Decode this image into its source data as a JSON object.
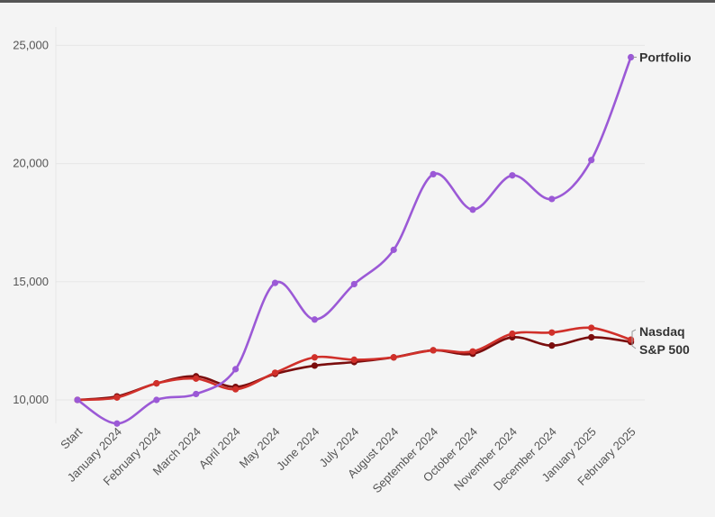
{
  "chart_data": {
    "type": "line",
    "title": "",
    "xlabel": "",
    "ylabel": "",
    "ylim": [
      9000,
      25500
    ],
    "y_ticks": [
      "10,000",
      "15,000",
      "20,000",
      "25,000"
    ],
    "y_tick_values": [
      10000,
      15000,
      20000,
      25000
    ],
    "grid": true,
    "legend": "end-of-line labels",
    "categories": [
      "Start",
      "January 2024",
      "February 2024",
      "March 2024",
      "April 2024",
      "May 2024",
      "June 2024",
      "July 2024",
      "August 2024",
      "September 2024",
      "October 2024",
      "November 2024",
      "December 2024",
      "January 2025",
      "February 2025"
    ],
    "series": [
      {
        "name": "Portfolio",
        "color": "#9b59d6",
        "values": [
          10000,
          9000,
          10000,
          10250,
          11300,
          14950,
          13400,
          14900,
          16350,
          19550,
          18050,
          19500,
          18500,
          20150,
          24500
        ]
      },
      {
        "name": "Nasdaq",
        "color": "#d0302a",
        "values": [
          10000,
          10100,
          10700,
          10900,
          10450,
          11150,
          11800,
          11700,
          11800,
          12100,
          12050,
          12800,
          12850,
          13050,
          12550
        ]
      },
      {
        "name": "S&P 500",
        "color": "#7a0d0d",
        "values": [
          10000,
          10150,
          10700,
          11000,
          10550,
          11100,
          11450,
          11600,
          11800,
          12100,
          11950,
          12650,
          12300,
          12650,
          12450
        ]
      }
    ]
  }
}
